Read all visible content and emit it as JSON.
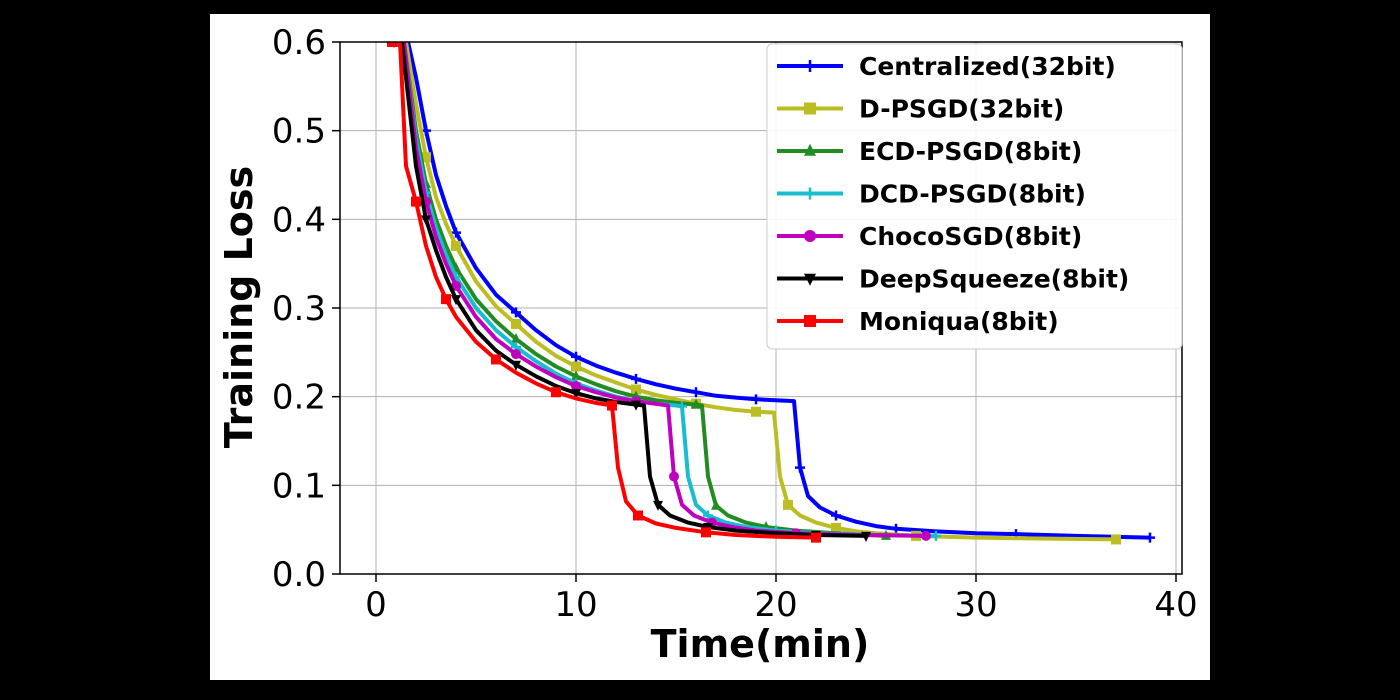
{
  "chart_data": {
    "type": "line",
    "title": "",
    "xlabel": "Time(min)",
    "ylabel": "Training Loss",
    "xlim": [
      -1.8,
      40.3
    ],
    "ylim": [
      0.0,
      0.6
    ],
    "xticks": [
      "0",
      "10",
      "20",
      "30",
      "40"
    ],
    "yticks": [
      "0.0",
      "0.1",
      "0.2",
      "0.3",
      "0.4",
      "0.5",
      "0.6"
    ],
    "grid": true,
    "legend_position": "top-right",
    "series": [
      {
        "name": "Centralized(32bit)",
        "color": "#0000ff",
        "marker": "plus",
        "points": [
          [
            1.2,
            0.6
          ],
          [
            1.6,
            0.6
          ],
          [
            2.0,
            0.56
          ],
          [
            2.5,
            0.5
          ],
          [
            3.0,
            0.45
          ],
          [
            3.5,
            0.415
          ],
          [
            4.0,
            0.385
          ],
          [
            5.0,
            0.345
          ],
          [
            6.0,
            0.315
          ],
          [
            7.0,
            0.295
          ],
          [
            8.0,
            0.275
          ],
          [
            9.0,
            0.258
          ],
          [
            10.0,
            0.245
          ],
          [
            11.0,
            0.235
          ],
          [
            12.0,
            0.227
          ],
          [
            13.0,
            0.22
          ],
          [
            14.0,
            0.214
          ],
          [
            15.0,
            0.209
          ],
          [
            16.0,
            0.205
          ],
          [
            17.0,
            0.201
          ],
          [
            18.0,
            0.199
          ],
          [
            19.0,
            0.197
          ],
          [
            20.0,
            0.196
          ],
          [
            20.9,
            0.195
          ],
          [
            21.2,
            0.12
          ],
          [
            21.6,
            0.088
          ],
          [
            22.2,
            0.075
          ],
          [
            23.0,
            0.066
          ],
          [
            24.0,
            0.059
          ],
          [
            25.0,
            0.054
          ],
          [
            26.0,
            0.051
          ],
          [
            28.0,
            0.048
          ],
          [
            30.0,
            0.046
          ],
          [
            32.0,
            0.045
          ],
          [
            35.0,
            0.043
          ],
          [
            38.7,
            0.041
          ]
        ]
      },
      {
        "name": "D-PSGD(32bit)",
        "color": "#bcbd22",
        "marker": "square",
        "points": [
          [
            1.1,
            0.6
          ],
          [
            1.5,
            0.6
          ],
          [
            2.0,
            0.53
          ],
          [
            2.5,
            0.47
          ],
          [
            3.0,
            0.425
          ],
          [
            3.5,
            0.395
          ],
          [
            4.0,
            0.37
          ],
          [
            5.0,
            0.33
          ],
          [
            6.0,
            0.302
          ],
          [
            7.0,
            0.282
          ],
          [
            8.0,
            0.262
          ],
          [
            9.0,
            0.246
          ],
          [
            10.0,
            0.234
          ],
          [
            11.0,
            0.224
          ],
          [
            12.0,
            0.216
          ],
          [
            13.0,
            0.208
          ],
          [
            14.0,
            0.202
          ],
          [
            15.0,
            0.197
          ],
          [
            16.0,
            0.192
          ],
          [
            17.0,
            0.188
          ],
          [
            18.0,
            0.185
          ],
          [
            19.0,
            0.183
          ],
          [
            19.9,
            0.182
          ],
          [
            20.2,
            0.11
          ],
          [
            20.6,
            0.078
          ],
          [
            21.2,
            0.066
          ],
          [
            22.0,
            0.058
          ],
          [
            23.0,
            0.052
          ],
          [
            24.0,
            0.048
          ],
          [
            25.0,
            0.046
          ],
          [
            27.0,
            0.043
          ],
          [
            30.0,
            0.041
          ],
          [
            33.0,
            0.04
          ],
          [
            37.0,
            0.039
          ]
        ]
      },
      {
        "name": "ECD-PSGD(8bit)",
        "color": "#228b22",
        "marker": "triangle-up",
        "points": [
          [
            1.0,
            0.6
          ],
          [
            1.4,
            0.6
          ],
          [
            2.0,
            0.5
          ],
          [
            2.5,
            0.44
          ],
          [
            3.0,
            0.4
          ],
          [
            3.5,
            0.37
          ],
          [
            4.0,
            0.345
          ],
          [
            5.0,
            0.31
          ],
          [
            6.0,
            0.285
          ],
          [
            7.0,
            0.265
          ],
          [
            8.0,
            0.248
          ],
          [
            9.0,
            0.234
          ],
          [
            10.0,
            0.223
          ],
          [
            11.0,
            0.214
          ],
          [
            12.0,
            0.206
          ],
          [
            13.0,
            0.2
          ],
          [
            14.0,
            0.196
          ],
          [
            15.0,
            0.193
          ],
          [
            16.0,
            0.191
          ],
          [
            16.3,
            0.19
          ],
          [
            16.6,
            0.11
          ],
          [
            17.0,
            0.077
          ],
          [
            17.6,
            0.066
          ],
          [
            18.5,
            0.058
          ],
          [
            19.5,
            0.053
          ],
          [
            21.0,
            0.049
          ],
          [
            23.0,
            0.046
          ],
          [
            25.5,
            0.043
          ]
        ]
      },
      {
        "name": "DCD-PSGD(8bit)",
        "color": "#17becf",
        "marker": "plus",
        "points": [
          [
            1.0,
            0.6
          ],
          [
            1.4,
            0.6
          ],
          [
            2.0,
            0.49
          ],
          [
            2.5,
            0.43
          ],
          [
            3.0,
            0.39
          ],
          [
            3.5,
            0.36
          ],
          [
            4.0,
            0.335
          ],
          [
            5.0,
            0.3
          ],
          [
            6.0,
            0.275
          ],
          [
            7.0,
            0.256
          ],
          [
            8.0,
            0.24
          ],
          [
            9.0,
            0.226
          ],
          [
            10.0,
            0.215
          ],
          [
            11.0,
            0.207
          ],
          [
            12.0,
            0.2
          ],
          [
            13.0,
            0.195
          ],
          [
            14.0,
            0.192
          ],
          [
            15.0,
            0.19
          ],
          [
            15.3,
            0.189
          ],
          [
            15.6,
            0.11
          ],
          [
            16.0,
            0.078
          ],
          [
            16.6,
            0.066
          ],
          [
            17.5,
            0.058
          ],
          [
            18.5,
            0.053
          ],
          [
            20.0,
            0.049
          ],
          [
            22.0,
            0.046
          ],
          [
            25.0,
            0.044
          ],
          [
            28.0,
            0.043
          ]
        ]
      },
      {
        "name": "ChocoSGD(8bit)",
        "color": "#bf00bf",
        "marker": "circle",
        "points": [
          [
            1.0,
            0.6
          ],
          [
            1.4,
            0.6
          ],
          [
            2.0,
            0.48
          ],
          [
            2.5,
            0.42
          ],
          [
            3.0,
            0.38
          ],
          [
            3.5,
            0.35
          ],
          [
            4.0,
            0.325
          ],
          [
            5.0,
            0.29
          ],
          [
            6.0,
            0.265
          ],
          [
            7.0,
            0.248
          ],
          [
            8.0,
            0.234
          ],
          [
            9.0,
            0.222
          ],
          [
            10.0,
            0.212
          ],
          [
            11.0,
            0.205
          ],
          [
            12.0,
            0.199
          ],
          [
            13.0,
            0.195
          ],
          [
            14.0,
            0.192
          ],
          [
            14.6,
            0.19
          ],
          [
            14.9,
            0.11
          ],
          [
            15.3,
            0.078
          ],
          [
            15.9,
            0.066
          ],
          [
            16.8,
            0.058
          ],
          [
            17.8,
            0.053
          ],
          [
            19.0,
            0.049
          ],
          [
            21.0,
            0.046
          ],
          [
            24.0,
            0.044
          ],
          [
            27.5,
            0.043
          ]
        ]
      },
      {
        "name": "DeepSqueeze(8bit)",
        "color": "#000000",
        "marker": "triangle-down",
        "points": [
          [
            0.9,
            0.6
          ],
          [
            1.3,
            0.6
          ],
          [
            2.0,
            0.46
          ],
          [
            2.5,
            0.4
          ],
          [
            3.0,
            0.365
          ],
          [
            3.5,
            0.335
          ],
          [
            4.0,
            0.31
          ],
          [
            5.0,
            0.275
          ],
          [
            6.0,
            0.252
          ],
          [
            7.0,
            0.236
          ],
          [
            8.0,
            0.223
          ],
          [
            9.0,
            0.212
          ],
          [
            10.0,
            0.204
          ],
          [
            11.0,
            0.198
          ],
          [
            12.0,
            0.194
          ],
          [
            13.0,
            0.191
          ],
          [
            13.4,
            0.19
          ],
          [
            13.7,
            0.11
          ],
          [
            14.1,
            0.078
          ],
          [
            14.7,
            0.066
          ],
          [
            15.6,
            0.058
          ],
          [
            16.6,
            0.053
          ],
          [
            18.0,
            0.049
          ],
          [
            20.0,
            0.046
          ],
          [
            22.0,
            0.044
          ],
          [
            24.5,
            0.043
          ]
        ]
      },
      {
        "name": "Moniqua(8bit)",
        "color": "#ff0000",
        "marker": "square",
        "points": [
          [
            0.8,
            0.6
          ],
          [
            1.2,
            0.6
          ],
          [
            1.5,
            0.46
          ],
          [
            2.0,
            0.42
          ],
          [
            2.5,
            0.37
          ],
          [
            3.0,
            0.335
          ],
          [
            3.5,
            0.31
          ],
          [
            4.0,
            0.29
          ],
          [
            5.0,
            0.262
          ],
          [
            6.0,
            0.242
          ],
          [
            7.0,
            0.227
          ],
          [
            8.0,
            0.215
          ],
          [
            9.0,
            0.205
          ],
          [
            10.0,
            0.198
          ],
          [
            11.0,
            0.193
          ],
          [
            11.8,
            0.19
          ],
          [
            12.1,
            0.12
          ],
          [
            12.5,
            0.082
          ],
          [
            13.1,
            0.066
          ],
          [
            14.0,
            0.057
          ],
          [
            15.0,
            0.052
          ],
          [
            16.5,
            0.047
          ],
          [
            18.0,
            0.044
          ],
          [
            20.0,
            0.042
          ],
          [
            22.0,
            0.041
          ]
        ]
      }
    ]
  }
}
